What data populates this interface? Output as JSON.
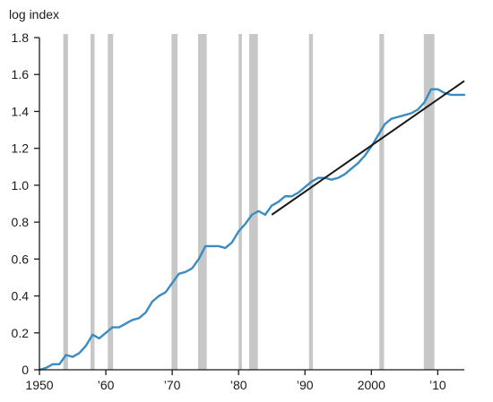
{
  "chart_data": {
    "type": "line",
    "ylabel": "log index",
    "xlim": [
      1950,
      2014
    ],
    "ylim": [
      0,
      1.8
    ],
    "y_ticks": [
      0,
      0.2,
      0.4,
      0.6,
      0.8,
      1.0,
      1.2,
      1.4,
      1.6,
      1.8
    ],
    "y_tick_labels": [
      "0",
      "0.2",
      "0.4",
      "0.6",
      "0.8",
      "1.0",
      "1.2",
      "1.4",
      "1.6",
      "1.8"
    ],
    "x_ticks": [
      1950,
      1960,
      1970,
      1980,
      1990,
      2000,
      2010
    ],
    "x_tick_labels": [
      "1950",
      "’60",
      "’70",
      "’80",
      "’90",
      "2000",
      "’10"
    ],
    "grid": false,
    "legend": "none",
    "colors": {
      "series": "#3a8cc1",
      "trend": "#1a1a1a",
      "recession": "#c7c7c7",
      "axis": "#1a1a1a"
    },
    "recession_bands": [
      [
        1953.6,
        1954.3
      ],
      [
        1957.7,
        1958.3
      ],
      [
        1960.3,
        1961.1
      ],
      [
        1969.9,
        1970.8
      ],
      [
        1973.9,
        1975.2
      ],
      [
        1980.0,
        1980.5
      ],
      [
        1981.6,
        1982.9
      ],
      [
        1990.6,
        1991.2
      ],
      [
        2001.2,
        2001.9
      ],
      [
        2007.9,
        2009.5
      ]
    ],
    "series": [
      {
        "x": [
          1950,
          1951,
          1952,
          1953,
          1954,
          1955,
          1956,
          1957,
          1958,
          1959,
          1960,
          1961,
          1962,
          1963,
          1964,
          1965,
          1966,
          1967,
          1968,
          1969,
          1970,
          1971,
          1972,
          1973,
          1974,
          1975,
          1976,
          1977,
          1978,
          1979,
          1980,
          1981,
          1982,
          1983,
          1984,
          1985,
          1986,
          1987,
          1988,
          1989,
          1990,
          1991,
          1992,
          1993,
          1994,
          1995,
          1996,
          1997,
          1998,
          1999,
          2000,
          2001,
          2002,
          2003,
          2004,
          2005,
          2006,
          2007,
          2008,
          2009,
          2010,
          2011,
          2012,
          2013,
          2014
        ],
        "values": [
          0.0,
          0.01,
          0.03,
          0.03,
          0.08,
          0.07,
          0.09,
          0.13,
          0.19,
          0.17,
          0.2,
          0.23,
          0.23,
          0.25,
          0.27,
          0.28,
          0.31,
          0.37,
          0.4,
          0.42,
          0.47,
          0.52,
          0.53,
          0.55,
          0.6,
          0.67,
          0.67,
          0.67,
          0.66,
          0.69,
          0.75,
          0.79,
          0.84,
          0.86,
          0.84,
          0.89,
          0.91,
          0.94,
          0.94,
          0.96,
          0.99,
          1.02,
          1.04,
          1.04,
          1.03,
          1.04,
          1.06,
          1.09,
          1.12,
          1.16,
          1.21,
          1.27,
          1.33,
          1.36,
          1.37,
          1.38,
          1.39,
          1.41,
          1.45,
          1.52,
          1.52,
          1.5,
          1.49,
          1.49,
          1.49
        ]
      }
    ],
    "trend_line": {
      "x": [
        1985,
        2014
      ],
      "values": [
        0.84,
        1.565
      ]
    }
  }
}
